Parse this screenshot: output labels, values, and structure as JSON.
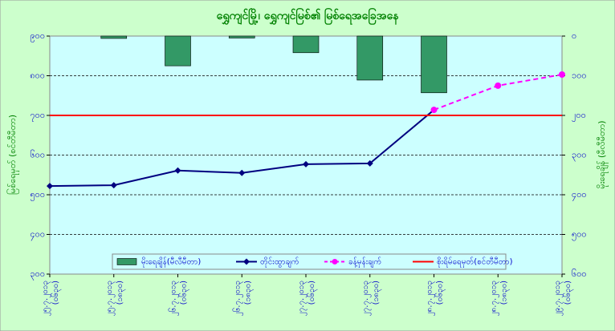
{
  "chart_data": {
    "type": "bar-line",
    "title": "ရွှေကျင်မြို့၊ ရွှေကျင်မြစ်၏ မြစ်ရေအခြေအနေ",
    "y_label": "မြစ်ရေမှတ် (စင်တီမီတာ)",
    "y2_label": "မိုးရေချိန် (မီလီမီတာ)",
    "categories": [
      [
        "၂၅.၇.၂၀၁၃",
        "(၀၆၃၀)"
      ],
      [
        "၂၅.၇.၂၀၁၃",
        "(၁၈၃၀)"
      ],
      [
        "၂၆.၇.၂၀၁၃",
        "(၀၆၃၀)"
      ],
      [
        "၂၆.၇.၂၀၁၃",
        "(၁၈၃၀)"
      ],
      [
        "၂၇.၇.၂၀၁၃",
        "(၀၆၃၀)"
      ],
      [
        "၂၇.၇.၂၀၁၃",
        "(၁၈၃၀)"
      ],
      [
        "၂၈.၇.၂၀၁၃",
        "(၀၆၃၀)"
      ],
      [
        "၂၈.၇.၂၀၁၃",
        "(၁၈၃၀)"
      ],
      [
        "၂၉.၇.၂၀၁၃",
        "(၀၆၃၀)"
      ]
    ],
    "ylim": [
      300,
      900
    ],
    "yticks": [
      {
        "value": 300,
        "label": "၃၀၀"
      },
      {
        "value": 400,
        "label": "၄၀၀"
      },
      {
        "value": 500,
        "label": "၅၀၀"
      },
      {
        "value": 600,
        "label": "၆၀၀"
      },
      {
        "value": 700,
        "label": "၇၀၀"
      },
      {
        "value": 800,
        "label": "၈၀၀"
      },
      {
        "value": 900,
        "label": "၉၀၀"
      }
    ],
    "y2lim": [
      0,
      600
    ],
    "y2_inverted": true,
    "y2ticks": [
      {
        "value": 0,
        "label": "၀"
      },
      {
        "value": 100,
        "label": "၁၀၀"
      },
      {
        "value": 200,
        "label": "၂၀၀"
      },
      {
        "value": 300,
        "label": "၃၀၀"
      },
      {
        "value": 400,
        "label": "၄၀၀"
      },
      {
        "value": 500,
        "label": "၅၀၀"
      },
      {
        "value": 600,
        "label": "၆၀၀"
      }
    ],
    "grid": true,
    "series": [
      {
        "name": "မိုးရေချိန်(မီလီမီတာ)",
        "kind": "bar",
        "axis": "y2",
        "color": "#339966",
        "values": [
          null,
          6,
          75,
          5,
          42,
          111,
          143,
          null,
          null
        ]
      },
      {
        "name": "တိုင်းထွာချက်",
        "kind": "line",
        "style": "solid",
        "marker": "diamond",
        "color": "#000080",
        "values": [
          522,
          524,
          561,
          555,
          577,
          579,
          714,
          null,
          null
        ]
      },
      {
        "name": "ခန့်မှန်းချက်",
        "kind": "line",
        "style": "dashed",
        "marker": "circle",
        "color": "#ff00ff",
        "values": [
          null,
          null,
          null,
          null,
          null,
          null,
          714,
          775,
          803
        ]
      },
      {
        "name": "စိုးရိမ်ရေမှတ်(စင်တီမီတာ)",
        "kind": "line",
        "style": "solid",
        "marker": "none",
        "color": "#ff0000",
        "values": [
          700,
          700,
          700,
          700,
          700,
          700,
          700,
          700,
          700
        ]
      }
    ]
  }
}
